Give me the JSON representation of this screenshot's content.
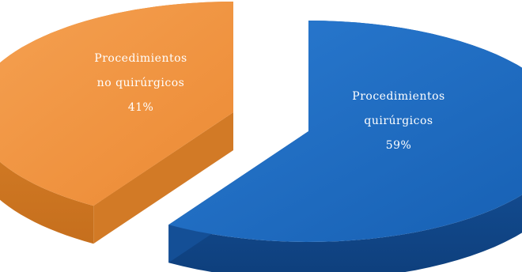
{
  "chart_data": {
    "type": "pie",
    "style": "3d-exploded",
    "title": "",
    "slices": [
      {
        "label_lines": [
          "Procedimientos",
          "no quirúrgicos"
        ],
        "value": 41,
        "value_label": "41%",
        "color": "#f0923e",
        "side_color": "#d27a26"
      },
      {
        "label_lines": [
          "Procedimientos",
          "quirúrgicos"
        ],
        "value": 59,
        "value_label": "59%",
        "color": "#1f6bc0",
        "side_color": "#144f96"
      }
    ]
  }
}
